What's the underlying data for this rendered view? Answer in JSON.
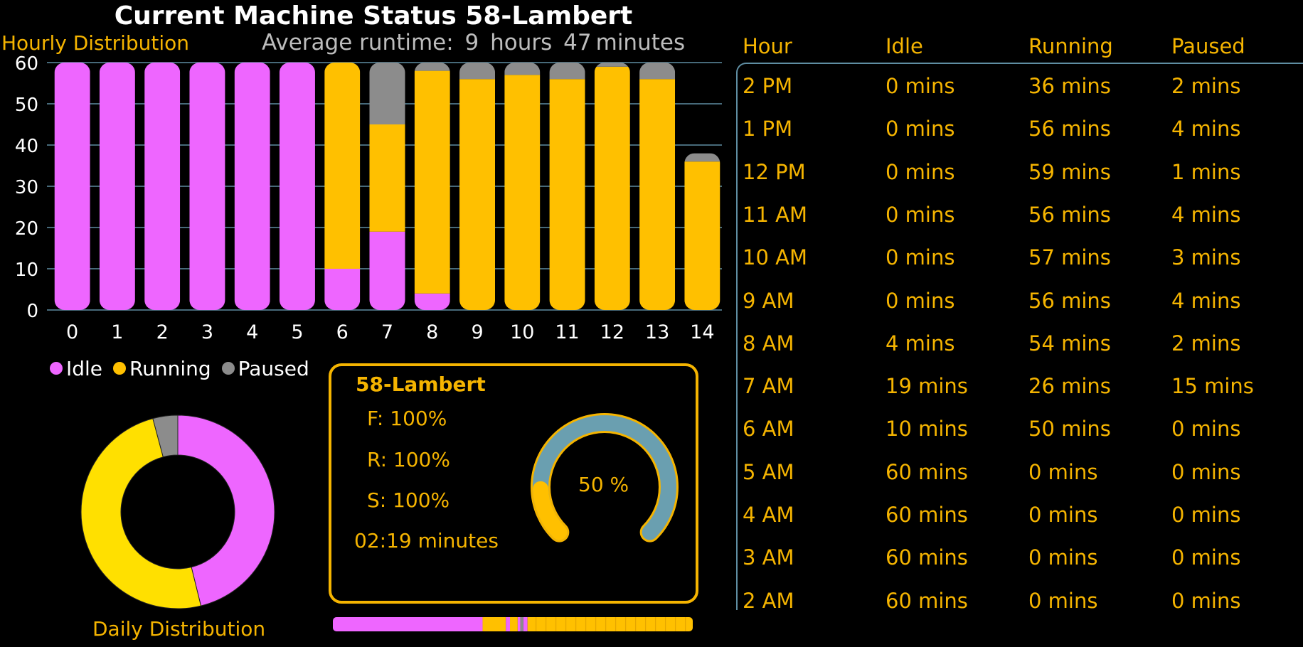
{
  "header": {
    "title": "Current Machine Status 58-Lambert",
    "subtitle": "Hourly Distribution",
    "avg_label": "Average runtime:",
    "avg_hours": "9",
    "hours_unit": "hours",
    "avg_minutes": "47",
    "minutes_unit": "minutes"
  },
  "colors": {
    "idle": "#EE66FF",
    "running": "#FFC000",
    "paused": "#8C8C8C",
    "accent": "#F5B400",
    "gauge": "#6A9FB0",
    "donut_running": "#FFE000"
  },
  "chart_data": [
    {
      "type": "bar",
      "stacked": true,
      "title": "",
      "categories": [
        "0",
        "1",
        "2",
        "3",
        "4",
        "5",
        "6",
        "7",
        "8",
        "9",
        "10",
        "11",
        "12",
        "13",
        "14"
      ],
      "series": [
        {
          "name": "Idle",
          "values": [
            60,
            60,
            60,
            60,
            60,
            60,
            10,
            19,
            4,
            0,
            0,
            0,
            0,
            0,
            0
          ]
        },
        {
          "name": "Running",
          "values": [
            0,
            0,
            0,
            0,
            0,
            0,
            50,
            26,
            54,
            56,
            57,
            56,
            59,
            56,
            36
          ]
        },
        {
          "name": "Paused",
          "values": [
            0,
            0,
            0,
            0,
            0,
            0,
            0,
            15,
            2,
            4,
            3,
            4,
            1,
            4,
            2
          ]
        }
      ],
      "ylim": [
        0,
        60
      ],
      "yticks": [
        "0",
        "10",
        "20",
        "30",
        "40",
        "50",
        "60"
      ],
      "grid": true,
      "legend": "bottom-left"
    },
    {
      "type": "pie",
      "donut": true,
      "title": "Daily Distribution",
      "labels": [
        "Idle",
        "Running",
        "Paused"
      ],
      "values": [
        433,
        466,
        39
      ]
    }
  ],
  "legend": {
    "idle": "Idle",
    "running": "Running",
    "paused": "Paused"
  },
  "card": {
    "title": "58-Lambert",
    "f": "F: 100%",
    "r": "R: 100%",
    "s": "S: 100%",
    "time": "02:19 minutes",
    "gauge_label": "50 %",
    "gauge_value": 0.5
  },
  "timeline": {
    "segments": [
      {
        "state": "idle",
        "length": 2.9
      },
      {
        "state": "running",
        "length": 0.45
      },
      {
        "state": "idle",
        "length": 0.08
      },
      {
        "state": "running",
        "length": 0.15
      },
      {
        "state": "idle",
        "length": 0.05
      },
      {
        "state": "paused",
        "length": 0.06
      },
      {
        "state": "idle",
        "length": 0.08
      },
      {
        "state": "running",
        "length": 3.2
      }
    ]
  },
  "table": {
    "columns": [
      "Hour",
      "Idle",
      "Running",
      "Paused"
    ],
    "rows": [
      [
        "2 PM",
        "0 mins",
        "36 mins",
        "2 mins"
      ],
      [
        "1 PM",
        "0 mins",
        "56 mins",
        "4 mins"
      ],
      [
        "12 PM",
        "0 mins",
        "59 mins",
        "1 mins"
      ],
      [
        "11 AM",
        "0 mins",
        "56 mins",
        "4 mins"
      ],
      [
        "10 AM",
        "0 mins",
        "57 mins",
        "3 mins"
      ],
      [
        "9 AM",
        "0 mins",
        "56 mins",
        "4 mins"
      ],
      [
        "8 AM",
        "4 mins",
        "54 mins",
        "2 mins"
      ],
      [
        "7 AM",
        "19 mins",
        "26 mins",
        "15 mins"
      ],
      [
        "6 AM",
        "10 mins",
        "50 mins",
        "0 mins"
      ],
      [
        "5 AM",
        "60 mins",
        "0 mins",
        "0 mins"
      ],
      [
        "4 AM",
        "60 mins",
        "0 mins",
        "0 mins"
      ],
      [
        "3 AM",
        "60 mins",
        "0 mins",
        "0 mins"
      ],
      [
        "2 AM",
        "60 mins",
        "0 mins",
        "0 mins"
      ]
    ]
  }
}
